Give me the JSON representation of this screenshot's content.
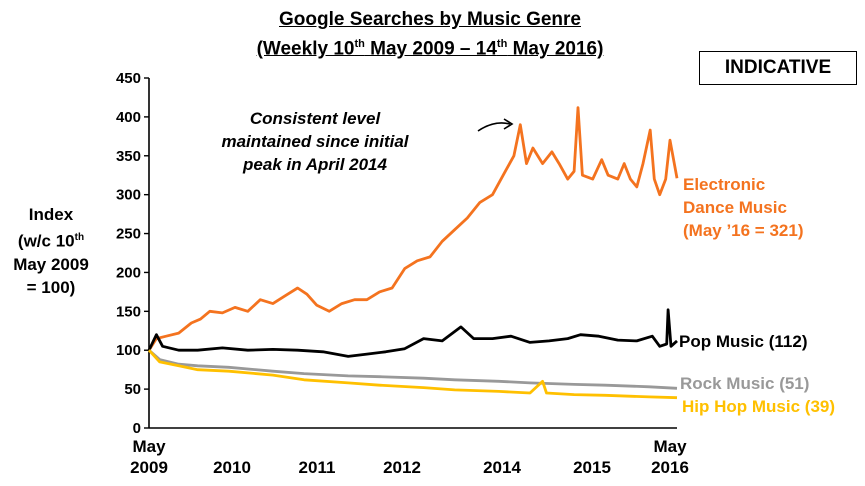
{
  "title": {
    "line1": "Google Searches by Music Genre",
    "line2_pre": "(Weekly 10",
    "line2_sup1": "th",
    "line2_mid": " May 2009 – 14",
    "line2_sup2": "th",
    "line2_post": " May 2016)"
  },
  "badge": "INDICATIVE",
  "y_axis_label": {
    "line1": "Index",
    "line2_pre": "(w/c 10",
    "line2_sup": "th",
    "line3": "May 2009",
    "line4": "= 100)"
  },
  "annotation": "Consistent level maintained since initial peak in April 2014",
  "series_labels": {
    "edm_line1": "Electronic",
    "edm_line2": "Dance Music",
    "edm_line3": "(May ’16 = 321)",
    "pop": "Pop Music (112)",
    "rock": "Rock Music (51)",
    "hiphop": "Hip Hop Music (39)"
  },
  "x_axis_labels": {
    "start_month": "May",
    "start_year": "2009",
    "end_month": "May",
    "end_year": "2016",
    "years": [
      "2010",
      "2011",
      "2012",
      "2014",
      "2015"
    ]
  },
  "chart_data": {
    "type": "line",
    "title": "Google Searches by Music Genre (Weekly 10th May 2009 – 14th May 2016)",
    "ylabel": "Index (w/c 10th May 2009 = 100)",
    "xlabel": "",
    "ylim": [
      0,
      450
    ],
    "yticks": [
      0,
      50,
      100,
      150,
      200,
      250,
      300,
      350,
      400,
      450
    ],
    "x_start": "2009-05-10",
    "x_end": "2016-05-14",
    "colors": {
      "edm": "#f4731f",
      "pop": "#000000",
      "rock": "#999999",
      "hiphop": "#ffc000"
    },
    "series": [
      {
        "name": "Electronic Dance Music",
        "key": "edm",
        "points": [
          [
            "2009-05-10",
            100
          ],
          [
            "2009-06-15",
            115
          ],
          [
            "2009-08-01",
            118
          ],
          [
            "2009-10-01",
            122
          ],
          [
            "2009-12-01",
            135
          ],
          [
            "2010-01-15",
            140
          ],
          [
            "2010-03-01",
            150
          ],
          [
            "2010-05-01",
            148
          ],
          [
            "2010-07-01",
            155
          ],
          [
            "2010-09-01",
            150
          ],
          [
            "2010-11-01",
            165
          ],
          [
            "2011-01-01",
            160
          ],
          [
            "2011-03-01",
            170
          ],
          [
            "2011-05-01",
            180
          ],
          [
            "2011-06-15",
            172
          ],
          [
            "2011-08-01",
            158
          ],
          [
            "2011-10-01",
            150
          ],
          [
            "2011-12-01",
            160
          ],
          [
            "2012-02-01",
            165
          ],
          [
            "2012-04-01",
            165
          ],
          [
            "2012-06-01",
            175
          ],
          [
            "2012-08-01",
            180
          ],
          [
            "2012-10-01",
            205
          ],
          [
            "2012-12-01",
            215
          ],
          [
            "2013-02-01",
            220
          ],
          [
            "2013-04-01",
            240
          ],
          [
            "2013-06-01",
            255
          ],
          [
            "2013-08-01",
            270
          ],
          [
            "2013-10-01",
            290
          ],
          [
            "2013-12-01",
            300
          ],
          [
            "2014-02-01",
            330
          ],
          [
            "2014-03-15",
            350
          ],
          [
            "2014-04-15",
            390
          ],
          [
            "2014-05-15",
            340
          ],
          [
            "2014-06-15",
            360
          ],
          [
            "2014-08-01",
            340
          ],
          [
            "2014-09-15",
            355
          ],
          [
            "2014-10-20",
            340
          ],
          [
            "2014-12-01",
            320
          ],
          [
            "2015-01-01",
            330
          ],
          [
            "2015-01-20",
            412
          ],
          [
            "2015-02-10",
            325
          ],
          [
            "2015-04-01",
            320
          ],
          [
            "2015-05-15",
            345
          ],
          [
            "2015-06-15",
            325
          ],
          [
            "2015-08-01",
            320
          ],
          [
            "2015-09-01",
            340
          ],
          [
            "2015-10-01",
            320
          ],
          [
            "2015-11-01",
            310
          ],
          [
            "2015-12-01",
            340
          ],
          [
            "2016-01-05",
            383
          ],
          [
            "2016-01-25",
            320
          ],
          [
            "2016-02-20",
            300
          ],
          [
            "2016-03-20",
            320
          ],
          [
            "2016-04-10",
            370
          ],
          [
            "2016-05-14",
            321
          ]
        ]
      },
      {
        "name": "Pop Music",
        "key": "pop",
        "points": [
          [
            "2009-05-10",
            100
          ],
          [
            "2009-06-15",
            120
          ],
          [
            "2009-07-15",
            105
          ],
          [
            "2009-10-01",
            100
          ],
          [
            "2010-01-01",
            100
          ],
          [
            "2010-05-01",
            103
          ],
          [
            "2010-09-01",
            100
          ],
          [
            "2011-01-01",
            101
          ],
          [
            "2011-05-01",
            100
          ],
          [
            "2011-09-01",
            98
          ],
          [
            "2012-01-01",
            92
          ],
          [
            "2012-04-01",
            95
          ],
          [
            "2012-07-01",
            98
          ],
          [
            "2012-10-01",
            102
          ],
          [
            "2013-01-01",
            115
          ],
          [
            "2013-04-01",
            112
          ],
          [
            "2013-07-01",
            130
          ],
          [
            "2013-09-01",
            115
          ],
          [
            "2013-12-01",
            115
          ],
          [
            "2014-03-01",
            118
          ],
          [
            "2014-06-01",
            110
          ],
          [
            "2014-09-01",
            112
          ],
          [
            "2014-12-01",
            115
          ],
          [
            "2015-02-01",
            120
          ],
          [
            "2015-05-01",
            118
          ],
          [
            "2015-08-01",
            113
          ],
          [
            "2015-11-01",
            112
          ],
          [
            "2016-01-15",
            118
          ],
          [
            "2016-02-20",
            105
          ],
          [
            "2016-03-25",
            108
          ],
          [
            "2016-04-01",
            152
          ],
          [
            "2016-04-15",
            105
          ],
          [
            "2016-05-14",
            112
          ]
        ]
      },
      {
        "name": "Rock Music",
        "key": "rock",
        "points": [
          [
            "2009-05-10",
            100
          ],
          [
            "2009-07-01",
            88
          ],
          [
            "2009-10-01",
            82
          ],
          [
            "2010-01-01",
            80
          ],
          [
            "2010-06-01",
            78
          ],
          [
            "2011-01-01",
            73
          ],
          [
            "2011-06-01",
            70
          ],
          [
            "2012-01-01",
            67
          ],
          [
            "2012-06-01",
            66
          ],
          [
            "2013-01-01",
            64
          ],
          [
            "2013-06-01",
            62
          ],
          [
            "2014-01-01",
            60
          ],
          [
            "2014-06-01",
            58
          ],
          [
            "2015-01-01",
            56
          ],
          [
            "2015-06-01",
            55
          ],
          [
            "2016-01-01",
            53
          ],
          [
            "2016-05-14",
            51
          ]
        ]
      },
      {
        "name": "Hip Hop Music",
        "key": "hiphop",
        "points": [
          [
            "2009-05-10",
            100
          ],
          [
            "2009-07-01",
            85
          ],
          [
            "2009-10-01",
            80
          ],
          [
            "2010-01-01",
            75
          ],
          [
            "2010-06-01",
            73
          ],
          [
            "2011-01-01",
            68
          ],
          [
            "2011-06-01",
            62
          ],
          [
            "2012-01-01",
            58
          ],
          [
            "2012-06-01",
            55
          ],
          [
            "2013-01-01",
            52
          ],
          [
            "2013-06-01",
            49
          ],
          [
            "2014-01-01",
            47
          ],
          [
            "2014-06-01",
            45
          ],
          [
            "2014-08-01",
            60
          ],
          [
            "2014-08-20",
            45
          ],
          [
            "2015-01-01",
            43
          ],
          [
            "2015-06-01",
            42
          ],
          [
            "2016-01-01",
            40
          ],
          [
            "2016-05-14",
            39
          ]
        ]
      }
    ]
  }
}
